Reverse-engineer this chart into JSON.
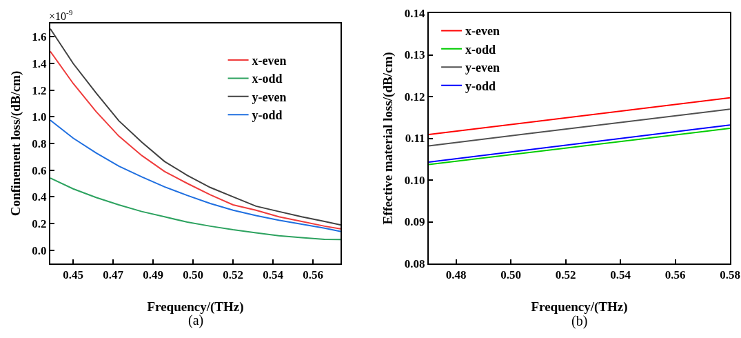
{
  "chart_data": [
    {
      "type": "line",
      "xlabel": "Frequency/(THz)",
      "ylabel": "Confinement loss/(dB/cm)",
      "annotations": [
        "×10$^{-9}$",
        "(a)"
      ],
      "x": [
        0.44,
        0.45,
        0.46,
        0.47,
        0.48,
        0.49,
        0.5,
        0.51,
        0.52,
        0.53,
        0.54,
        0.55,
        0.56,
        0.567
      ],
      "series": [
        {
          "name": "x-even",
          "color": "#ef3b3b",
          "values": [
            1.49,
            1.25,
            1.04,
            0.855,
            0.71,
            0.59,
            0.5,
            0.415,
            0.34,
            0.3,
            0.25,
            0.215,
            0.18,
            0.16
          ]
        },
        {
          "name": "x-odd",
          "color": "#2ca25f",
          "values": [
            0.54,
            0.46,
            0.395,
            0.34,
            0.29,
            0.25,
            0.21,
            0.18,
            0.153,
            0.13,
            0.108,
            0.094,
            0.081,
            0.08
          ]
        },
        {
          "name": "y-even",
          "color": "#404040",
          "values": [
            1.66,
            1.4,
            1.18,
            0.97,
            0.81,
            0.665,
            0.56,
            0.47,
            0.4,
            0.33,
            0.29,
            0.25,
            0.215,
            0.19
          ]
        },
        {
          "name": "y-odd",
          "color": "#1f6fe0",
          "values": [
            0.975,
            0.84,
            0.73,
            0.63,
            0.55,
            0.475,
            0.41,
            0.35,
            0.3,
            0.26,
            0.225,
            0.195,
            0.165,
            0.14
          ]
        }
      ],
      "xlim": [
        0.44,
        0.567
      ],
      "xticks": [
        {
          "value": 0.45,
          "label": "0.45"
        },
        {
          "value": 0.4675,
          "label": "0.47"
        },
        {
          "value": 0.485,
          "label": "0.49"
        },
        {
          "value": 0.5025,
          "label": "0.50"
        },
        {
          "value": 0.52,
          "label": "0.52"
        },
        {
          "value": 0.5375,
          "label": "0.54"
        },
        {
          "value": 0.555,
          "label": "0.56"
        }
      ],
      "ylim": [
        -0.1,
        1.7
      ],
      "yticks": [
        {
          "value": 0,
          "label": "0.0"
        },
        {
          "value": 0.2,
          "label": "0.2"
        },
        {
          "value": 0.4,
          "label": "0.4"
        },
        {
          "value": 0.6,
          "label": "0.6"
        },
        {
          "value": 0.8,
          "label": "0.8"
        },
        {
          "value": 1,
          "label": "1.0"
        },
        {
          "value": 1.2,
          "label": "1.2"
        },
        {
          "value": 1.4,
          "label": "1.4"
        },
        {
          "value": 1.6,
          "label": "1.6"
        }
      ],
      "grid": false,
      "legend": "top right",
      "marker": "none",
      "line_style": "solid"
    },
    {
      "type": "line",
      "xlabel": "Frequency/(THz)",
      "ylabel": "Effective material loss/(dB/cm)",
      "annotations": [
        "(b)"
      ],
      "x": [
        0.47,
        0.58
      ],
      "series": [
        {
          "name": "x-even",
          "color": "#ff0000",
          "values": [
            0.1109,
            0.1197
          ]
        },
        {
          "name": "x-odd",
          "color": "#00cc00",
          "values": [
            0.1037,
            0.1124
          ]
        },
        {
          "name": "y-even",
          "color": "#505050",
          "values": [
            0.1082,
            0.117
          ]
        },
        {
          "name": "y-odd",
          "color": "#0000ff",
          "values": [
            0.1043,
            0.1132
          ]
        }
      ],
      "xlim": [
        0.47,
        0.58
      ],
      "xticks": [
        {
          "value": 0.48,
          "label": "0.48"
        },
        {
          "value": 0.5,
          "label": "0.50"
        },
        {
          "value": 0.52,
          "label": "0.52"
        },
        {
          "value": 0.54,
          "label": "0.54"
        },
        {
          "value": 0.56,
          "label": "0.56"
        },
        {
          "value": 0.58,
          "label": "0.58"
        }
      ],
      "ylim": [
        0.08,
        0.14
      ],
      "yticks": [
        {
          "value": 0.08,
          "label": "0.08"
        },
        {
          "value": 0.09,
          "label": "0.09"
        },
        {
          "value": 0.1,
          "label": "0.10"
        },
        {
          "value": 0.11,
          "label": "0.11"
        },
        {
          "value": 0.12,
          "label": "0.12"
        },
        {
          "value": 0.13,
          "label": "0.13"
        },
        {
          "value": 0.14,
          "label": "0.14"
        }
      ],
      "grid": false,
      "legend": "top left",
      "marker": "none",
      "line_style": "solid"
    }
  ]
}
